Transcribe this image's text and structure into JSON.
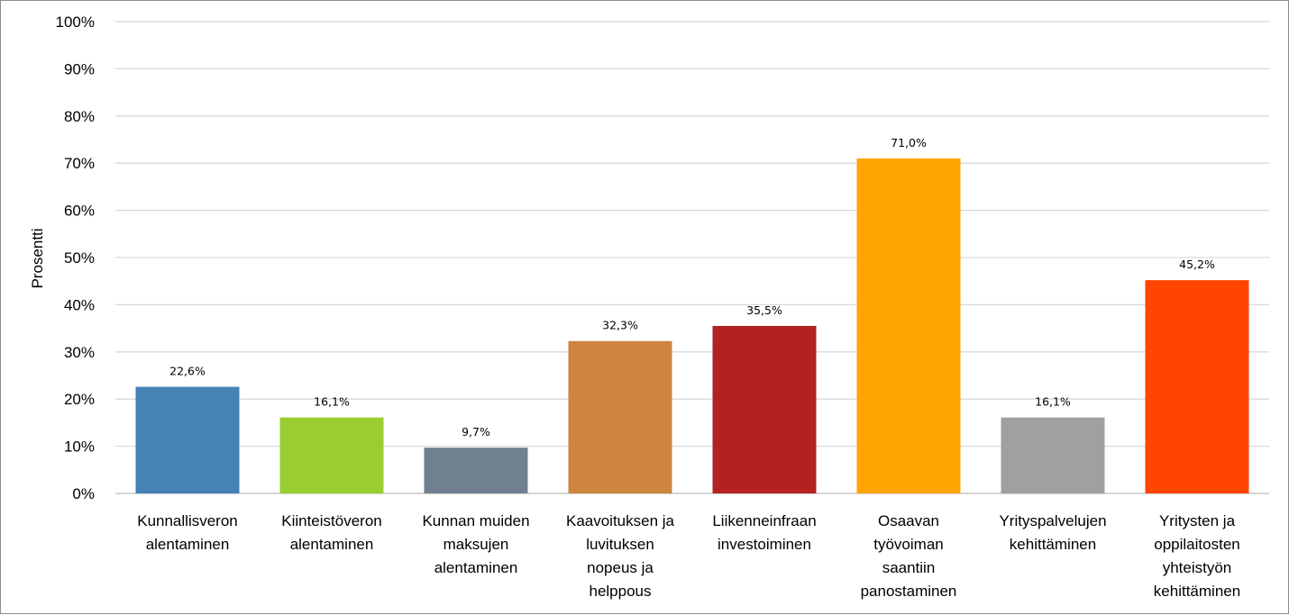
{
  "chart_data": {
    "type": "bar",
    "title": "",
    "xlabel": "",
    "ylabel": "Prosentti",
    "ylim": [
      0,
      100
    ],
    "yticks": [
      "0%",
      "10%",
      "20%",
      "30%",
      "40%",
      "50%",
      "60%",
      "70%",
      "80%",
      "90%",
      "100%"
    ],
    "grid": true,
    "legend": "none",
    "categories": [
      [
        "Kunnallisveron",
        "alentaminen"
      ],
      [
        "Kiinteistöveron",
        "alentaminen"
      ],
      [
        "Kunnan muiden",
        "maksujen",
        "alentaminen"
      ],
      [
        "Kaavoituksen ja",
        "luvituksen",
        "nopeus ja",
        "helppous"
      ],
      [
        "Liikenneinfraan",
        "investoiminen"
      ],
      [
        "Osaavan",
        "työvoiman",
        "saantiin",
        "panostaminen"
      ],
      [
        "Yrityspalvelujen",
        "kehittäminen"
      ],
      [
        "Yritysten ja",
        "oppilaitosten",
        "yhteistyön",
        "kehittäminen"
      ]
    ],
    "values": [
      22.6,
      16.1,
      9.7,
      32.3,
      35.5,
      71.0,
      16.1,
      45.2
    ],
    "data_labels": [
      "22,6%",
      "16,1%",
      "9,7%",
      "32,3%",
      "35,5%",
      "71,0%",
      "16,1%",
      "45,2%"
    ],
    "colors": [
      "#4682b4",
      "#9acd32",
      "#708090",
      "#cd853f",
      "#b22222",
      "#ffa500",
      "#a0a0a0",
      "#ff4500"
    ]
  }
}
